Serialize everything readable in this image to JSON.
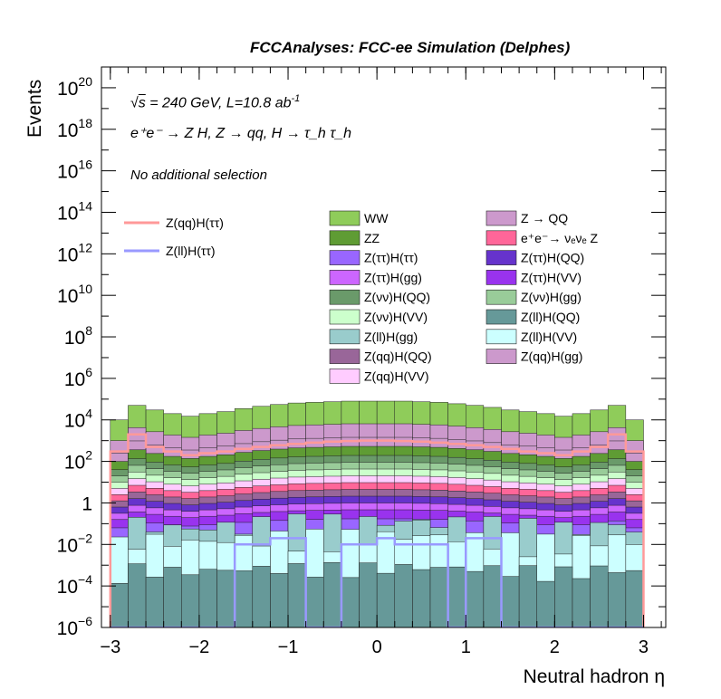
{
  "chart_data": {
    "type": "histogram_stacked_log",
    "title": "FCCAnalyses: FCC-ee Simulation (Delphes)",
    "xlabel": "Neutral hadron η",
    "ylabel": "Events",
    "xlim": [
      -3.1,
      3.25
    ],
    "ylim": [
      1e-06,
      1e+21
    ],
    "yscale": "log",
    "x_ticks": [
      "−3",
      "−2",
      "−1",
      "0",
      "1",
      "2",
      "3"
    ],
    "y_ticks": [
      {
        "base": "10",
        "exp": "−6"
      },
      {
        "base": "10",
        "exp": "−4"
      },
      {
        "base": "10",
        "exp": "−2"
      },
      {
        "base": "1",
        "exp": ""
      },
      {
        "base": "10",
        "exp": "2"
      },
      {
        "base": "10",
        "exp": "4"
      },
      {
        "base": "10",
        "exp": "6"
      },
      {
        "base": "10",
        "exp": "8"
      },
      {
        "base": "10",
        "exp": "10"
      },
      {
        "base": "10",
        "exp": "12"
      },
      {
        "base": "10",
        "exp": "14"
      },
      {
        "base": "10",
        "exp": "16"
      },
      {
        "base": "10",
        "exp": "18"
      },
      {
        "base": "10",
        "exp": "20"
      }
    ],
    "annotations": {
      "energy": {
        "sqrt": "s",
        "text": " = 240 GeV, L=10.8 ab",
        "sup": "-1"
      },
      "process": "e⁺e⁻ → Z H, Z → qq, H → τ_h τ_h",
      "selection": "No additional selection"
    },
    "bin_edges_start": -3.0,
    "bin_width": 0.2,
    "n_bins": 30,
    "stack_top_bins": [
      10000,
      50000,
      30000,
      20000,
      15000,
      20000,
      25000,
      35000,
      45000,
      55000,
      65000,
      70000,
      75000,
      80000,
      80000,
      80000,
      80000,
      75000,
      70000,
      60000,
      50000,
      40000,
      30000,
      25000,
      20000,
      15000,
      20000,
      30000,
      50000,
      10000
    ],
    "series": [
      {
        "name": "WW",
        "color": "#8fcc5a"
      },
      {
        "name": "ZZ",
        "color": "#5f9c34"
      },
      {
        "name": "Z(ττ)H(ττ)",
        "color": "#9966ff"
      },
      {
        "name": "Z(ττ)H(gg)",
        "color": "#cc66ff"
      },
      {
        "name": "Z(νν)H(QQ)",
        "color": "#6a9a6a"
      },
      {
        "name": "Z(νν)H(VV)",
        "color": "#ccffcc"
      },
      {
        "name": "Z(ll)H(gg)",
        "color": "#99cccc"
      },
      {
        "name": "Z(qq)H(QQ)",
        "color": "#996699"
      },
      {
        "name": "Z(qq)H(VV)",
        "color": "#ffccff"
      },
      {
        "name": "Z → QQ",
        "color": "#cc99cc"
      },
      {
        "name": "e⁺e⁻→ νₑνₑ Z",
        "color": "#ff6699"
      },
      {
        "name": "Z(ττ)H(QQ)",
        "color": "#6633cc"
      },
      {
        "name": "Z(ττ)H(VV)",
        "color": "#9933ee"
      },
      {
        "name": "Z(νν)H(gg)",
        "color": "#99cc99"
      },
      {
        "name": "Z(ll)H(QQ)",
        "color": "#669999"
      },
      {
        "name": "Z(ll)H(VV)",
        "color": "#ccffff"
      },
      {
        "name": "Z(qq)H(gg)",
        "color": "#cc99cc"
      }
    ],
    "signal_lines": [
      {
        "name": "Z(qq)H(ττ)",
        "color": "#ff9999",
        "values": [
          300,
          2000,
          500,
          300,
          200,
          250,
          300,
          400,
          500,
          600,
          700,
          800,
          900,
          950,
          1000,
          1000,
          950,
          900,
          800,
          700,
          600,
          500,
          400,
          300,
          250,
          200,
          300,
          500,
          2000,
          300
        ]
      },
      {
        "name": "Z(ll)H(ττ)",
        "color": "#9999ff",
        "values": [
          1e-06,
          1e-06,
          1e-06,
          1e-06,
          1e-06,
          1e-06,
          1e-06,
          0.01,
          0.01,
          0.02,
          0.02,
          1e-06,
          1e-06,
          0.01,
          0.01,
          0.02,
          0.01,
          0.01,
          0.01,
          1e-06,
          0.02,
          0.02,
          1e-06,
          1e-06,
          1e-06,
          1e-06,
          1e-06,
          1e-06,
          1e-06,
          1e-06
        ]
      }
    ],
    "legend": {
      "position": "top-right",
      "columns": 2
    }
  }
}
